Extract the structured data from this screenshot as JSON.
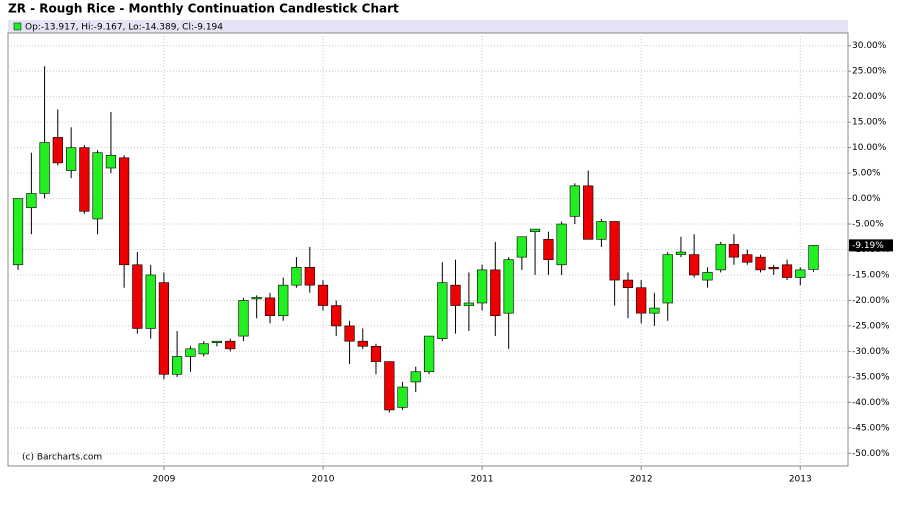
{
  "chart_data": {
    "type": "candlestick",
    "title": "ZR - Rough Rice - Monthly Continuation Candlestick Chart",
    "legend_text": "Op:-13.917, Hi:-9.167, Lo:-14.389, Cl:-9.194",
    "credit": "(c) Barcharts.com",
    "last_label": "-9.19%",
    "up_color": "#22ee22",
    "down_color": "#ee0000",
    "grid": true,
    "xlim": [
      2008.02,
      2013.3
    ],
    "xticks": [
      2009,
      2010,
      2011,
      2012,
      2013
    ],
    "ylim": [
      -52.5,
      32.5
    ],
    "yticks": [
      {
        "value": 30,
        "label": "30.00%"
      },
      {
        "value": 25,
        "label": "25.00%"
      },
      {
        "value": 20,
        "label": "20.00%"
      },
      {
        "value": 15,
        "label": "15.00%"
      },
      {
        "value": 10,
        "label": "10.00%"
      },
      {
        "value": 5,
        "label": "5.00%"
      },
      {
        "value": 0,
        "label": "0.00%"
      },
      {
        "value": -5,
        "label": "-5.00%"
      },
      {
        "value": -10,
        "label": "-10.00%"
      },
      {
        "value": -15,
        "label": "-15.00%"
      },
      {
        "value": -20,
        "label": "-20.00%"
      },
      {
        "value": -25,
        "label": "-25.00%"
      },
      {
        "value": -30,
        "label": "-30.00%"
      },
      {
        "value": -35,
        "label": "-35.00%"
      },
      {
        "value": -40,
        "label": "-40.00%"
      },
      {
        "value": -45,
        "label": "-45.00%"
      },
      {
        "value": -50,
        "label": "-50.00%"
      }
    ],
    "x": [
      2008.083,
      2008.167,
      2008.25,
      2008.333,
      2008.417,
      2008.5,
      2008.583,
      2008.667,
      2008.75,
      2008.833,
      2008.917,
      2009.0,
      2009.083,
      2009.167,
      2009.25,
      2009.333,
      2009.417,
      2009.5,
      2009.583,
      2009.667,
      2009.75,
      2009.833,
      2009.917,
      2010.0,
      2010.083,
      2010.167,
      2010.25,
      2010.333,
      2010.417,
      2010.5,
      2010.583,
      2010.667,
      2010.75,
      2010.833,
      2010.917,
      2011.0,
      2011.083,
      2011.167,
      2011.25,
      2011.333,
      2011.417,
      2011.5,
      2011.583,
      2011.667,
      2011.75,
      2011.833,
      2011.917,
      2012.0,
      2012.083,
      2012.167,
      2012.25,
      2012.333,
      2012.417,
      2012.5,
      2012.583,
      2012.667,
      2012.75,
      2012.833,
      2012.917,
      2013.0,
      2013.083
    ],
    "open": [
      -13,
      -1.8,
      1,
      12,
      5.5,
      10,
      -4,
      6,
      8,
      -13,
      -25.5,
      -16.5,
      -34.5,
      -31,
      -30.5,
      -28.3,
      -28,
      -27,
      -19.7,
      -19.5,
      -23,
      -17,
      -13.5,
      -17,
      -21,
      -25,
      -28,
      -29,
      -32,
      -41,
      -36,
      -34,
      -27.5,
      -17,
      -21,
      -20.5,
      -14,
      -22.5,
      -11.5,
      -6.5,
      -8,
      -13,
      -3.5,
      2.5,
      -8,
      -4.5,
      -16,
      -17.5,
      -22.5,
      -20.5,
      -11,
      -11,
      -16,
      -14,
      -9,
      -11,
      -11.5,
      -13.5,
      -13,
      -15.5,
      -13.917
    ],
    "high": [
      0,
      9,
      26,
      17.5,
      14,
      10.5,
      9.5,
      17,
      8.5,
      -10.5,
      -13,
      -14.5,
      -26,
      -29,
      -28,
      -28,
      -27.5,
      -19.5,
      -19,
      -18.5,
      -15.5,
      -11.5,
      -9.5,
      -16,
      -20,
      -24,
      -25.5,
      -28.5,
      -32,
      -36,
      -33,
      -27,
      -12.5,
      -12,
      -14.5,
      -13,
      -8.5,
      -11.5,
      -7.5,
      -6,
      -6.5,
      -4.5,
      3,
      5.5,
      -4,
      -4.5,
      -14.5,
      -16,
      -18.5,
      -10.5,
      -7.5,
      -7,
      -13.5,
      -8.5,
      -7,
      -10,
      -11,
      -13,
      -12,
      -13.5,
      -9.167
    ],
    "low": [
      -14,
      -7,
      0,
      6.5,
      4,
      -3,
      -7,
      5,
      -17.5,
      -26.5,
      -27.5,
      -35.5,
      -35,
      -34,
      -31,
      -29,
      -30,
      -28,
      -23.5,
      -24.5,
      -24,
      -17.5,
      -18.5,
      -22,
      -27,
      -32.5,
      -29.5,
      -34.5,
      -42,
      -41.5,
      -38,
      -34.5,
      -28,
      -26.5,
      -26,
      -22,
      -27,
      -29.5,
      -14,
      -15,
      -15,
      -15,
      -5,
      -8,
      -9.5,
      -21,
      -23.5,
      -24.5,
      -25,
      -24,
      -11.5,
      -15.5,
      -17.5,
      -14.5,
      -13,
      -13,
      -14.5,
      -15,
      -16,
      -17,
      -14.389
    ],
    "close": [
      0,
      1,
      11,
      7,
      10,
      -2.5,
      9,
      8.5,
      -13,
      -25.5,
      -15,
      -34.5,
      -31,
      -29.5,
      -28.5,
      -28,
      -29.5,
      -20,
      -19.4,
      -23,
      -17,
      -13.5,
      -17,
      -21,
      -25,
      -28,
      -29,
      -32,
      -41.5,
      -37,
      -34,
      -27,
      -16.5,
      -21,
      -20.5,
      -14,
      -23,
      -12,
      -7.5,
      -6,
      -12,
      -5,
      2.5,
      -8,
      -4.5,
      -16,
      -17.5,
      -22.5,
      -21.5,
      -11,
      -10.5,
      -15,
      -14.5,
      -9,
      -11.5,
      -12.5,
      -14,
      -13.8,
      -15.5,
      -14,
      -9.194
    ]
  }
}
